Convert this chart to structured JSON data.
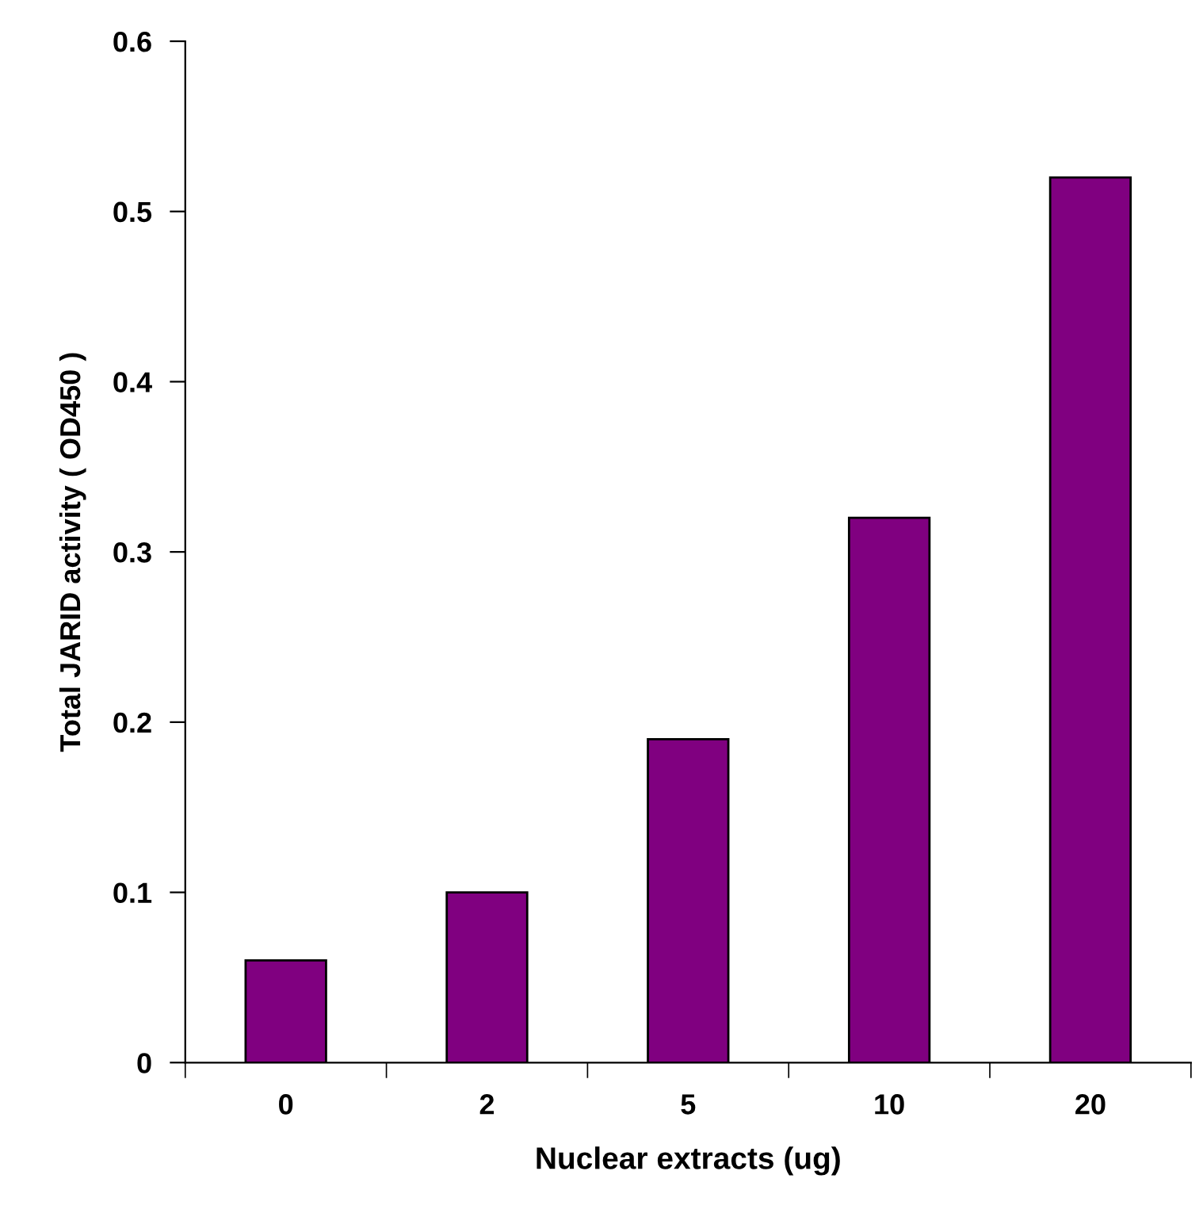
{
  "chart_data": {
    "type": "bar",
    "xlabel": "Nuclear extracts (ug)",
    "ylabel": "Total JARID activity ( OD450 )",
    "categories": [
      "0",
      "2",
      "5",
      "10",
      "20"
    ],
    "values": [
      0.06,
      0.1,
      0.19,
      0.32,
      0.52
    ],
    "color": "#800080",
    "ylim": [
      0,
      0.6
    ],
    "yticks": [
      0,
      0.1,
      0.2,
      0.3,
      0.4,
      0.5,
      0.6
    ],
    "grid": false,
    "legend": false
  }
}
